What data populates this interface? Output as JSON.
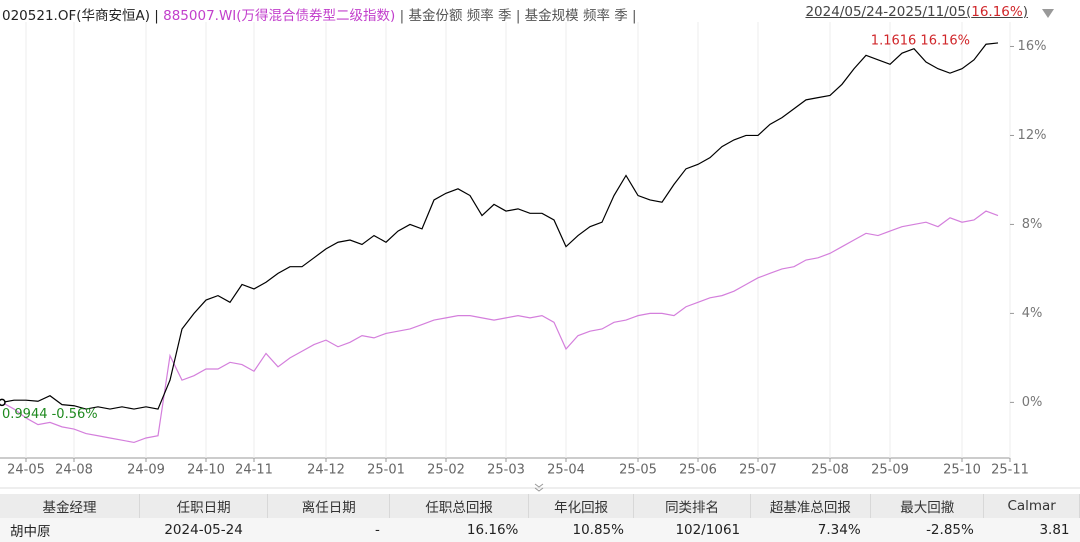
{
  "header": {
    "fund": "020521.OF(华商安恒A) |",
    "index": "885007.WI(万得混合债券型二级指数)",
    "options": "| 基金份额 频率 季 | 基金规模 频率 季 |",
    "range_prefix": "2024/05/24-2025/11/05(",
    "range_value": "16.16%",
    "range_suffix": ")"
  },
  "chart_data": {
    "type": "line",
    "categories": [
      null,
      null,
      "24-05",
      null,
      null,
      null,
      "24-08",
      null,
      null,
      null,
      null,
      null,
      "24-09",
      null,
      null,
      null,
      null,
      "24-10",
      null,
      null,
      null,
      "24-11",
      null,
      null,
      null,
      null,
      null,
      "24-12",
      null,
      null,
      null,
      null,
      "25-01",
      null,
      null,
      null,
      null,
      "25-02",
      null,
      null,
      null,
      null,
      "25-03",
      null,
      null,
      null,
      null,
      "25-04",
      null,
      null,
      null,
      null,
      null,
      "25-05",
      null,
      null,
      null,
      null,
      "25-06",
      null,
      null,
      null,
      null,
      "25-07",
      null,
      null,
      null,
      null,
      null,
      "25-08",
      null,
      null,
      null,
      null,
      "25-09",
      null,
      null,
      null,
      null,
      null,
      "25-10",
      null,
      null,
      null,
      "25-11"
    ],
    "series": [
      {
        "name": "020521.OF",
        "color": "#000000",
        "values": [
          0,
          0.1,
          0.1,
          0.05,
          0.3,
          -0.1,
          -0.15,
          -0.3,
          -0.2,
          -0.3,
          -0.2,
          -0.3,
          -0.2,
          -0.3,
          1.0,
          3.3,
          4.0,
          4.6,
          4.8,
          4.5,
          5.3,
          5.1,
          5.4,
          5.8,
          6.1,
          6.1,
          6.5,
          6.9,
          7.2,
          7.3,
          7.1,
          7.5,
          7.2,
          7.7,
          8.0,
          7.8,
          9.1,
          9.4,
          9.6,
          9.3,
          8.4,
          8.9,
          8.6,
          8.7,
          8.5,
          8.5,
          8.2,
          7.0,
          7.5,
          7.9,
          8.1,
          9.3,
          10.2,
          9.3,
          9.1,
          9.0,
          9.8,
          10.5,
          10.7,
          11.0,
          11.5,
          11.8,
          12.0,
          12.0,
          12.5,
          12.8,
          13.2,
          13.6,
          13.7,
          13.8,
          14.3,
          15.0,
          15.6,
          15.4,
          15.2,
          15.7,
          15.9,
          15.3,
          15.0,
          14.8,
          15.0,
          15.4,
          16.1,
          16.16,
          null
        ]
      },
      {
        "name": "885007.WI",
        "color": "#d47fdc",
        "values": [
          0,
          -0.3,
          -0.7,
          -1.0,
          -0.9,
          -1.1,
          -1.2,
          -1.4,
          -1.5,
          -1.6,
          -1.7,
          -1.8,
          -1.6,
          -1.5,
          2.1,
          1.0,
          1.2,
          1.5,
          1.5,
          1.8,
          1.7,
          1.4,
          2.2,
          1.6,
          2.0,
          2.3,
          2.6,
          2.8,
          2.5,
          2.7,
          3.0,
          2.9,
          3.1,
          3.2,
          3.3,
          3.5,
          3.7,
          3.8,
          3.9,
          3.9,
          3.8,
          3.7,
          3.8,
          3.9,
          3.8,
          3.9,
          3.6,
          2.4,
          3.0,
          3.2,
          3.3,
          3.6,
          3.7,
          3.9,
          4.0,
          4.0,
          3.9,
          4.3,
          4.5,
          4.7,
          4.8,
          5.0,
          5.3,
          5.6,
          5.8,
          6.0,
          6.1,
          6.4,
          6.5,
          6.7,
          7.0,
          7.3,
          7.6,
          7.5,
          7.7,
          7.9,
          8.0,
          8.1,
          7.9,
          8.3,
          8.1,
          8.2,
          8.6,
          8.4,
          null
        ]
      }
    ],
    "ylim": [
      -2.5,
      17.1
    ],
    "yticks": [
      {
        "value": 0,
        "label": "0%"
      },
      {
        "value": 4,
        "label": "4%"
      },
      {
        "value": 8,
        "label": "8%"
      },
      {
        "value": 12,
        "label": "12%"
      },
      {
        "value": 16,
        "label": "16%"
      }
    ],
    "grid": true,
    "annotations": [
      {
        "text": "1.1616 16.16%",
        "color": "#d0262a"
      },
      {
        "text": "0.9944 -0.56%",
        "color": "#1f8a1f"
      }
    ]
  },
  "table": {
    "header": [
      "基金经理",
      "任职日期",
      "离任日期",
      "任职总回报",
      "年化回报",
      "同类排名",
      "超基准总回报",
      "最大回撤",
      "Calmar"
    ],
    "rows": [
      [
        "胡中原",
        "2024-05-24",
        "-",
        "16.16%",
        "10.85%",
        "102/1061",
        "7.34%",
        "-2.85%",
        "3.81"
      ]
    ]
  }
}
